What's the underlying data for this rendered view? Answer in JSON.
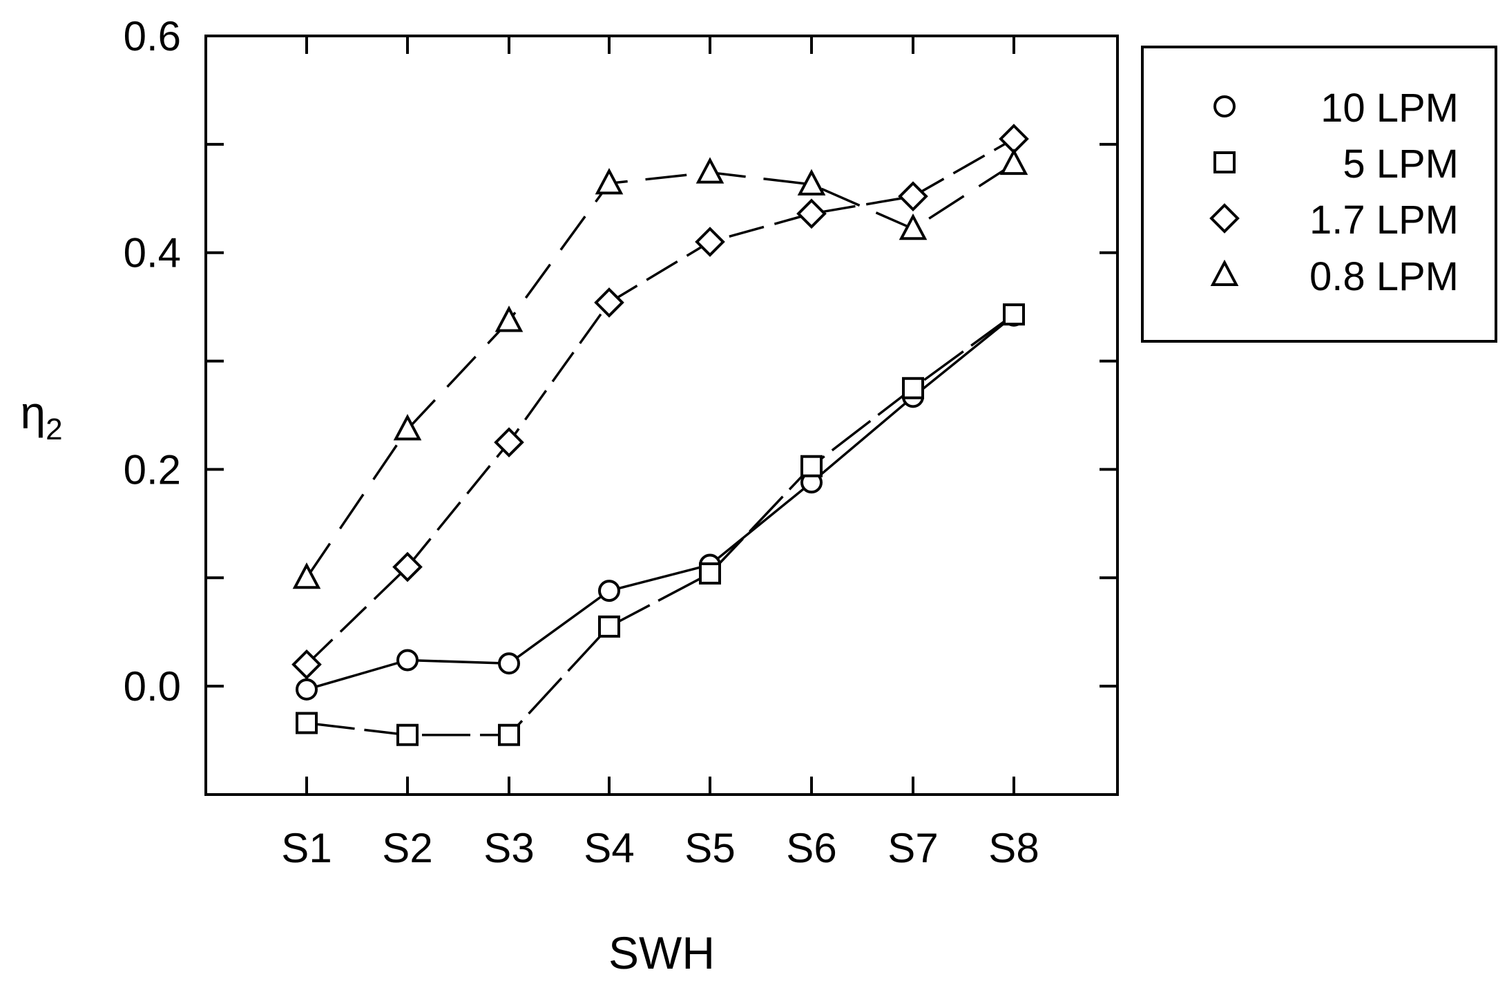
{
  "chart_data": {
    "type": "line",
    "title": "",
    "xlabel": "SWH",
    "ylabel_main": "η",
    "ylabel_sub": "2",
    "categories": [
      "S1",
      "S2",
      "S3",
      "S4",
      "S5",
      "S6",
      "S7",
      "S8"
    ],
    "yticks": [
      "0.0",
      "0.2",
      "0.4",
      "0.6"
    ],
    "ylim": [
      -0.1,
      0.6
    ],
    "grid": false,
    "legend_position": "right-top",
    "series": [
      {
        "name": "10 LPM",
        "marker": "circle",
        "line": "solid",
        "values": [
          -0.003,
          0.024,
          0.021,
          0.088,
          0.112,
          0.188,
          0.267,
          0.342
        ]
      },
      {
        "name": "5 LPM",
        "marker": "square",
        "line": "long-dash",
        "values": [
          -0.034,
          -0.045,
          -0.045,
          0.055,
          0.104,
          0.203,
          0.275,
          0.343
        ]
      },
      {
        "name": "1.7 LPM",
        "marker": "diamond",
        "line": "medium-dash",
        "values": [
          0.02,
          0.11,
          0.225,
          0.354,
          0.41,
          0.436,
          0.452,
          0.505
        ]
      },
      {
        "name": "0.8 LPM",
        "marker": "triangle",
        "line": "dash",
        "values": [
          0.1,
          0.237,
          0.337,
          0.464,
          0.474,
          0.463,
          0.422,
          0.482
        ]
      }
    ]
  }
}
